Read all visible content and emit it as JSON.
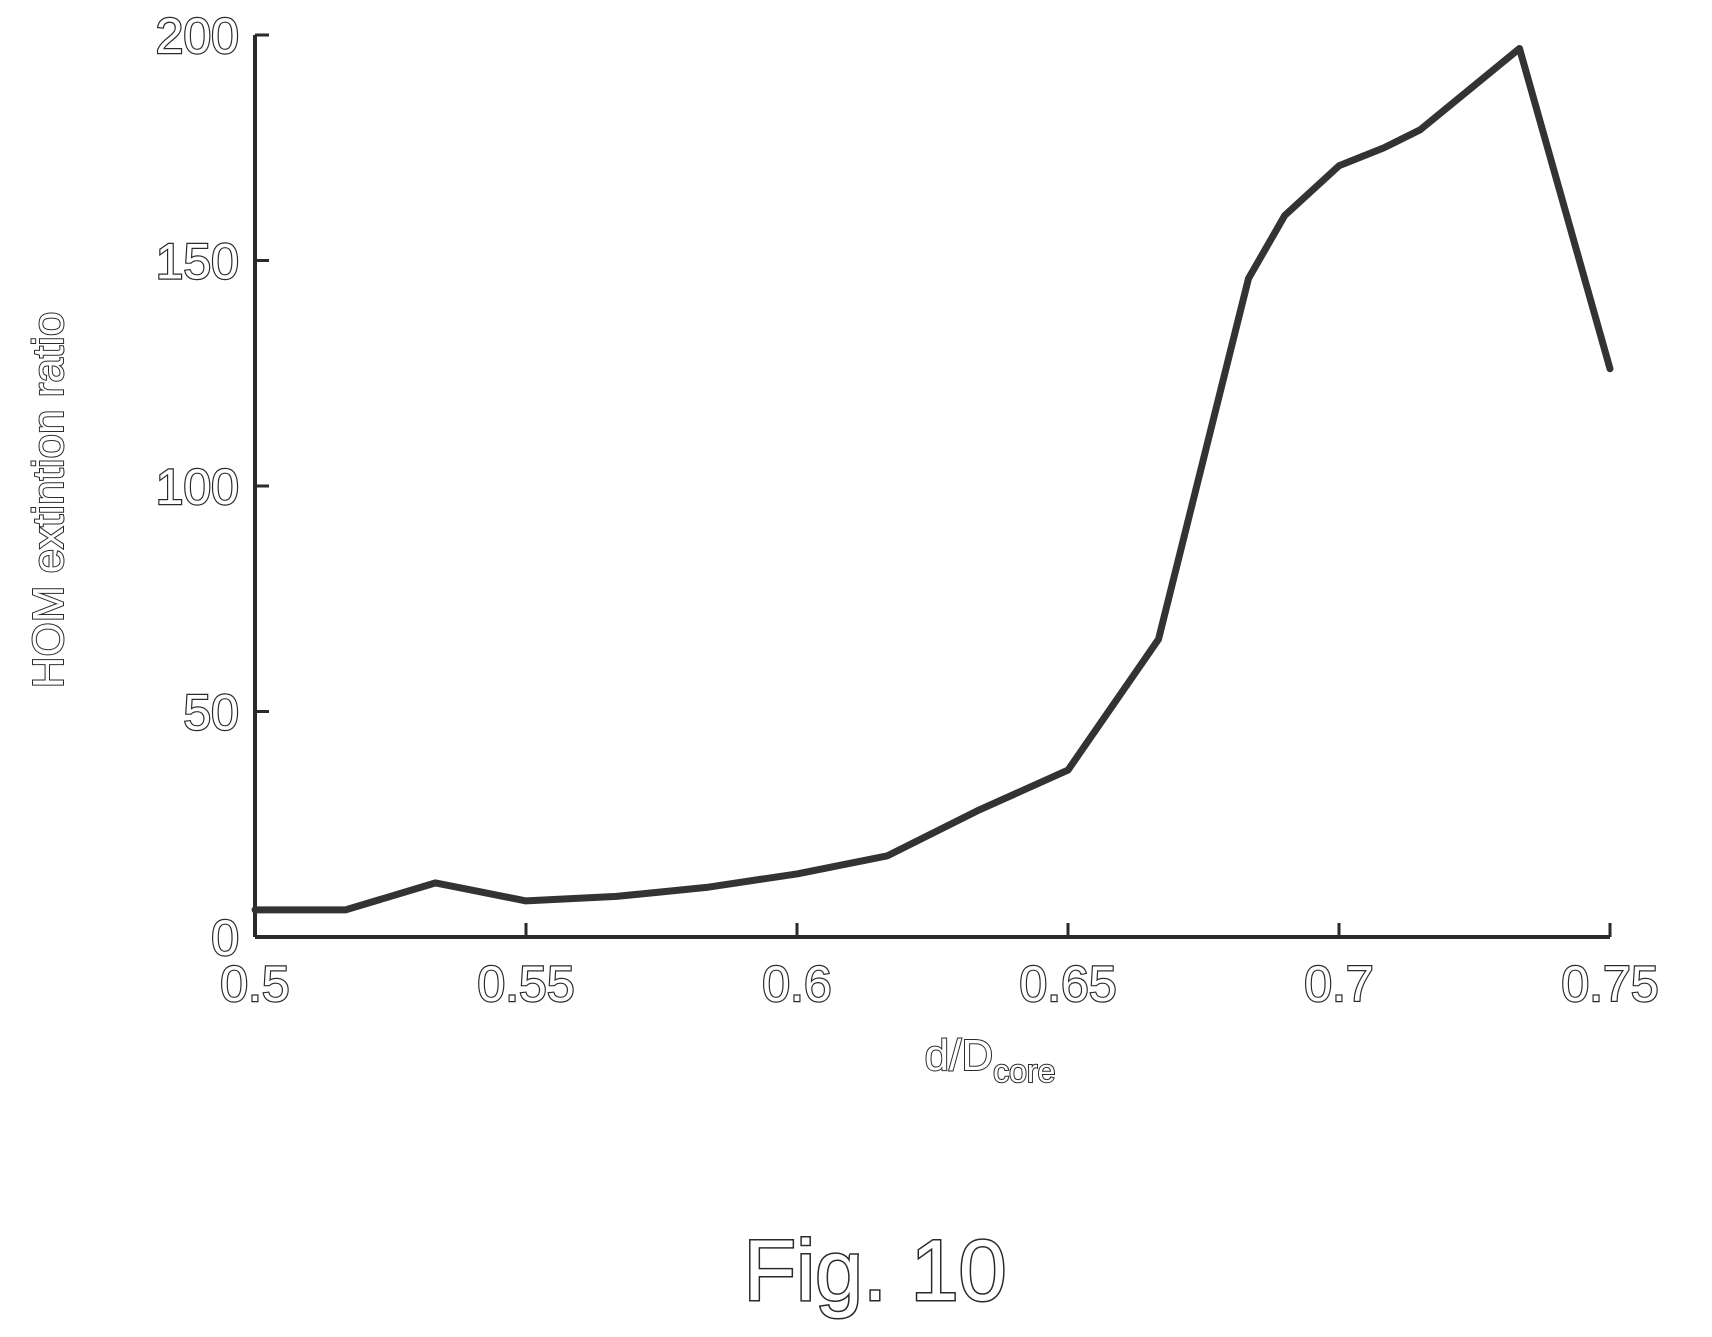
{
  "figure_caption": "Fig. 10",
  "chart_data": {
    "type": "line",
    "title": "",
    "xlabel_main": "d/D",
    "xlabel_sub": "core",
    "ylabel": "HOM extintion ratio",
    "xlim": [
      0.5,
      0.75
    ],
    "ylim": [
      0,
      200
    ],
    "x_ticks": [
      "0.5",
      "0.55",
      "0.6",
      "0.65",
      "0.7",
      "0.75"
    ],
    "y_ticks": [
      "0",
      "50",
      "100",
      "150",
      "200"
    ],
    "grid": false,
    "legend": "none",
    "line_color": "#333333",
    "series": [
      {
        "x": [
          0.5,
          0.5167,
          0.5333,
          0.55,
          0.5667,
          0.5833,
          0.6,
          0.6167,
          0.6333,
          0.65,
          0.6667,
          0.6833,
          0.69,
          0.7,
          0.7083,
          0.715,
          0.7333,
          0.75
        ],
        "y": [
          6,
          6,
          12,
          8,
          9,
          11,
          14,
          18,
          28,
          37,
          66,
          146,
          160,
          171,
          175,
          179,
          197,
          126
        ]
      }
    ]
  }
}
